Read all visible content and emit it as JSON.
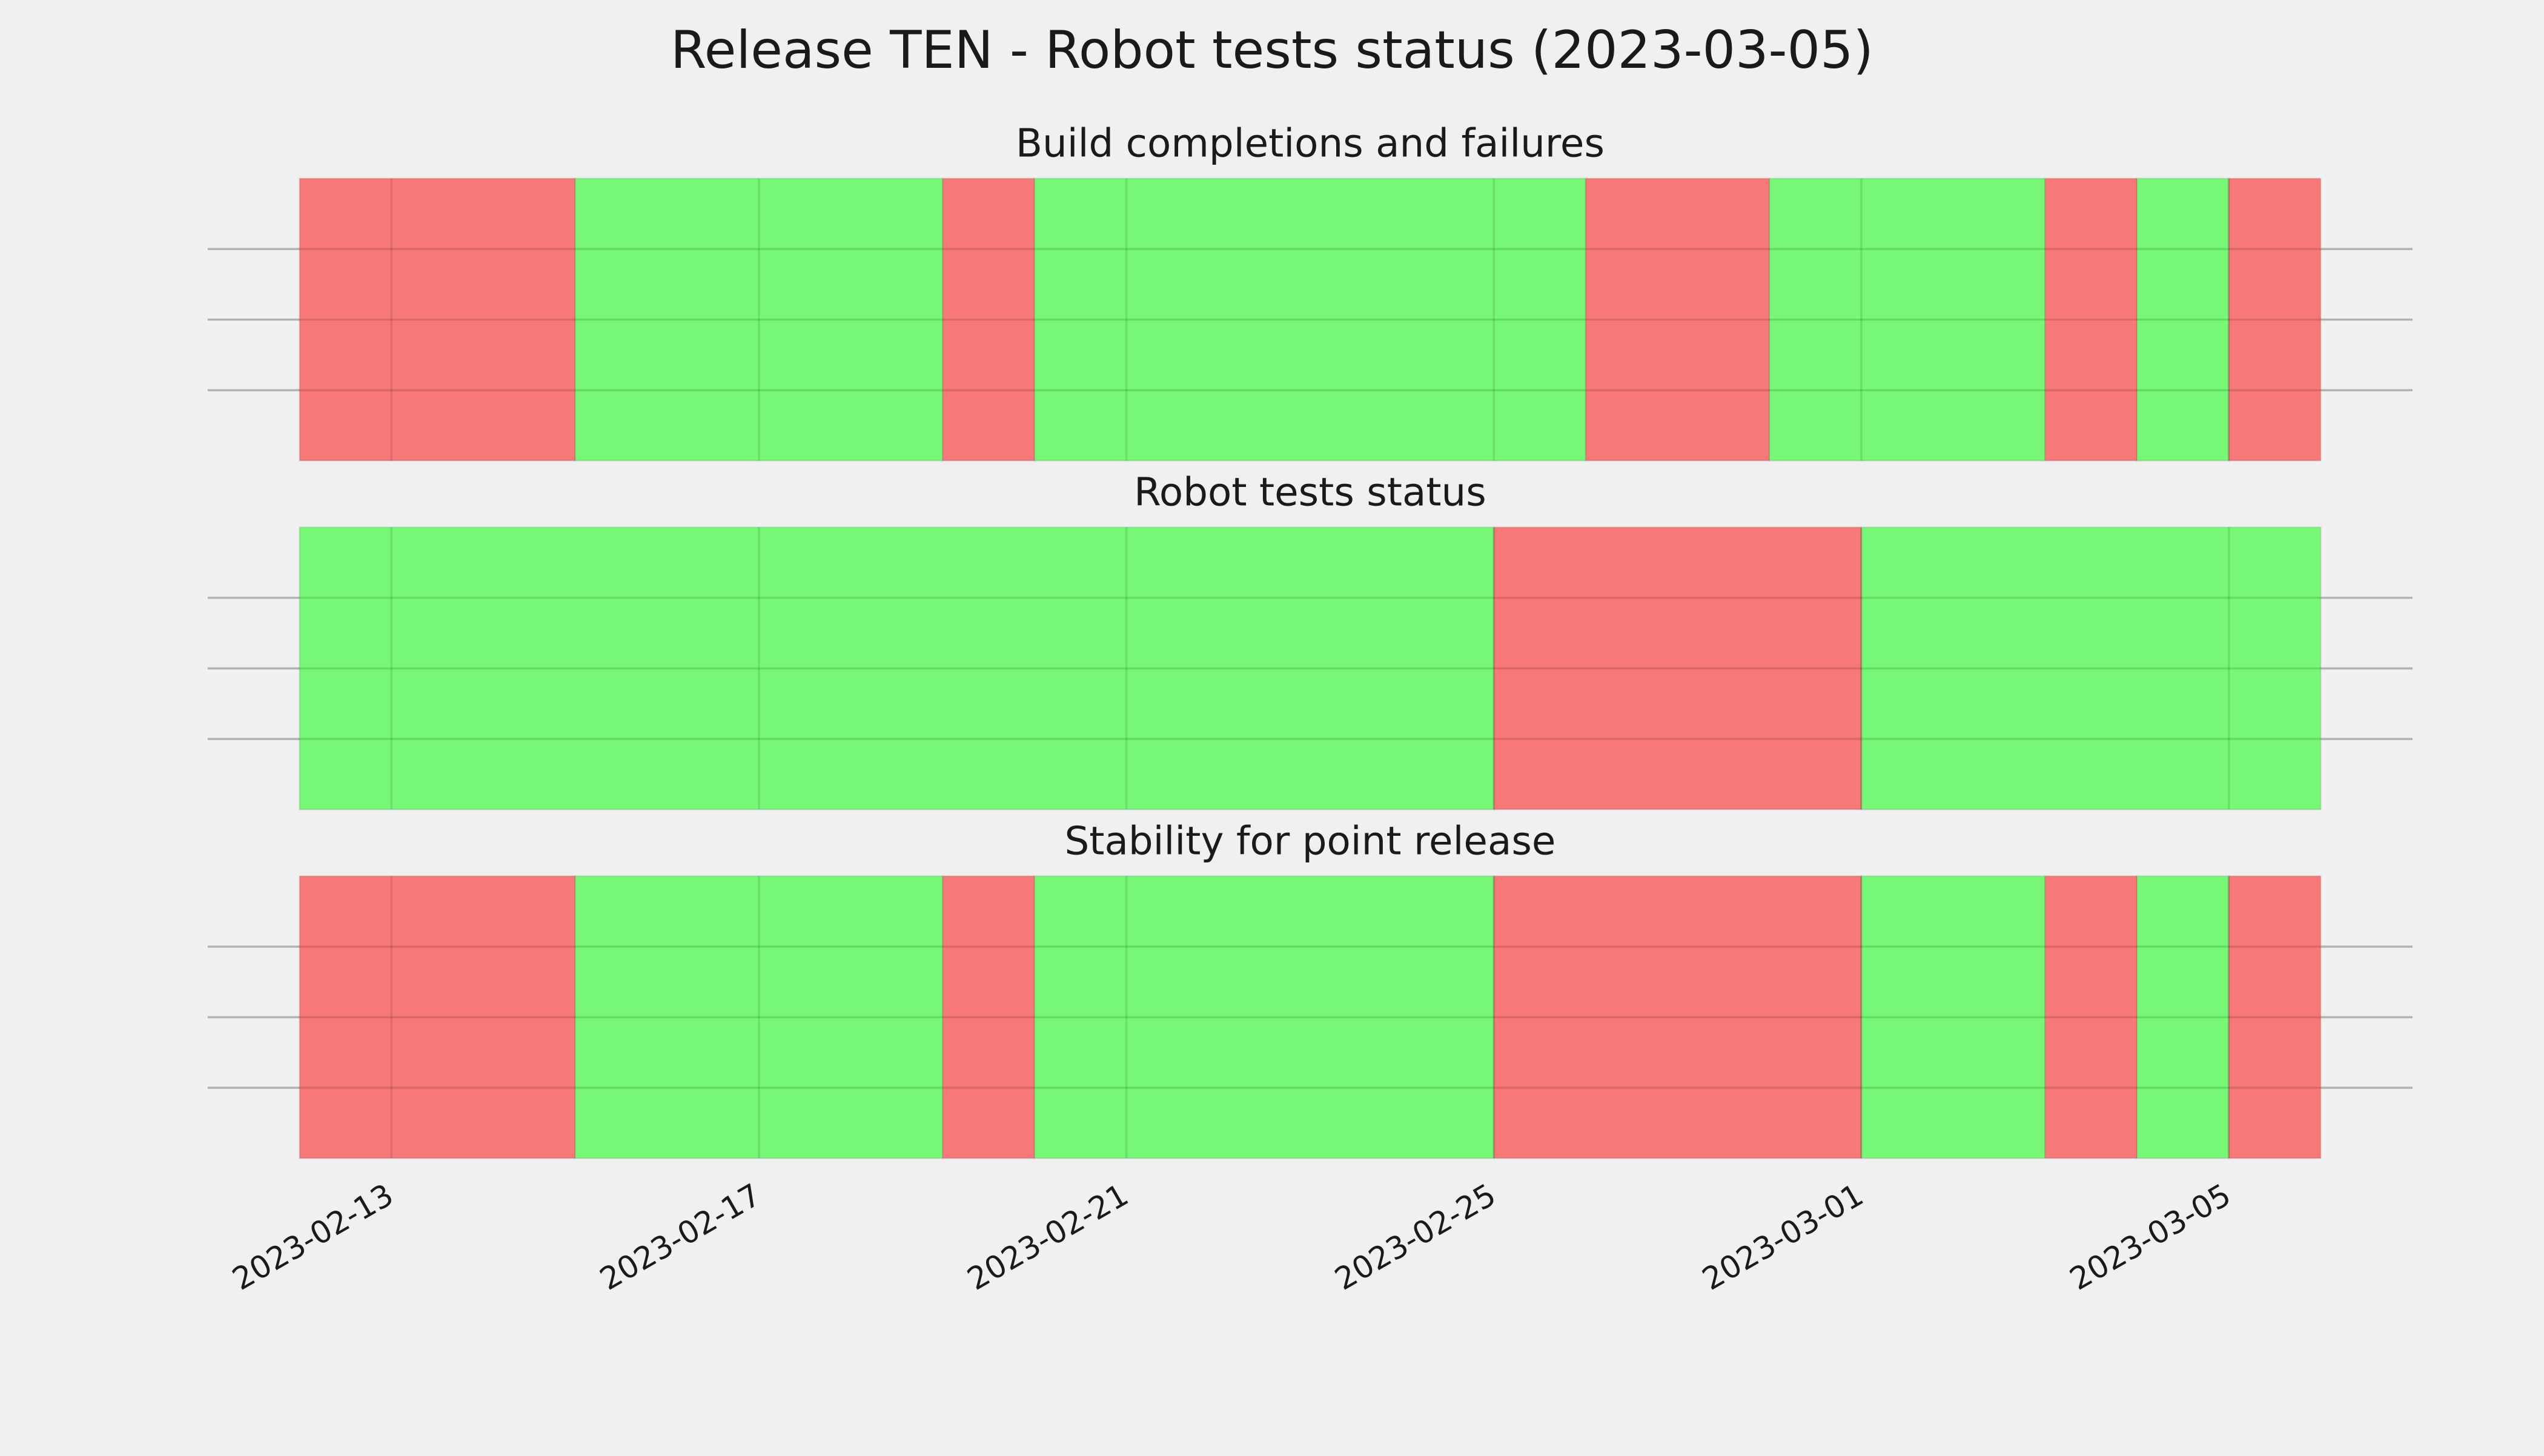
{
  "title": "Release TEN - Robot tests status (2023-03-05)",
  "chart_data": [
    {
      "type": "span",
      "title": "Build completions and failures",
      "starts": [
        "2023-02-12",
        "2023-02-15",
        "2023-02-19",
        "2023-02-20",
        "2023-02-26",
        "2023-02-28",
        "2023-03-03",
        "2023-03-04",
        "2023-03-05"
      ],
      "ends": [
        "2023-02-15",
        "2023-02-19",
        "2023-02-20",
        "2023-02-26",
        "2023-02-28",
        "2023-03-03",
        "2023-03-04",
        "2023-03-05",
        "2023-03-06"
      ],
      "colors": [
        "#f87878",
        "#76f776",
        "#f87878",
        "#76f776",
        "#f87878",
        "#76f776",
        "#f87878",
        "#76f776",
        "#f87878"
      ],
      "xlim": [
        "2023-02-11",
        "2023-03-07"
      ],
      "xticks": [
        "2023-02-13",
        "2023-02-17",
        "2023-02-21",
        "2023-02-25",
        "2023-03-01",
        "2023-03-05"
      ],
      "ylim": [
        0,
        1
      ],
      "yticks": [
        0.25,
        0.5,
        0.75
      ],
      "grid": true
    },
    {
      "type": "span",
      "title": "Robot tests status",
      "starts": [
        "2023-02-12",
        "2023-02-25",
        "2023-03-01"
      ],
      "ends": [
        "2023-02-25",
        "2023-03-01",
        "2023-03-06"
      ],
      "colors": [
        "#76f776",
        "#f87878",
        "#76f776"
      ],
      "xlim": [
        "2023-02-11",
        "2023-03-07"
      ],
      "xticks": [
        "2023-02-13",
        "2023-02-17",
        "2023-02-21",
        "2023-02-25",
        "2023-03-01",
        "2023-03-05"
      ],
      "ylim": [
        0,
        1
      ],
      "yticks": [
        0.25,
        0.5,
        0.75
      ],
      "grid": true
    },
    {
      "type": "span",
      "title": "Stability for point release",
      "starts": [
        "2023-02-12",
        "2023-02-15",
        "2023-02-19",
        "2023-02-20",
        "2023-02-25",
        "2023-03-01",
        "2023-03-03",
        "2023-03-04",
        "2023-03-05"
      ],
      "ends": [
        "2023-02-15",
        "2023-02-19",
        "2023-02-20",
        "2023-02-25",
        "2023-03-01",
        "2023-03-03",
        "2023-03-04",
        "2023-03-05",
        "2023-03-06"
      ],
      "colors": [
        "#f87878",
        "#76f776",
        "#f87878",
        "#76f776",
        "#f87878",
        "#76f776",
        "#f87878",
        "#76f776",
        "#f87878"
      ],
      "xlim": [
        "2023-02-11",
        "2023-03-07"
      ],
      "xticks": [
        "2023-02-13",
        "2023-02-17",
        "2023-02-21",
        "2023-02-25",
        "2023-03-01",
        "2023-03-05"
      ],
      "ylim": [
        0,
        1
      ],
      "yticks": [
        0.25,
        0.5,
        0.75
      ],
      "grid": true
    }
  ]
}
